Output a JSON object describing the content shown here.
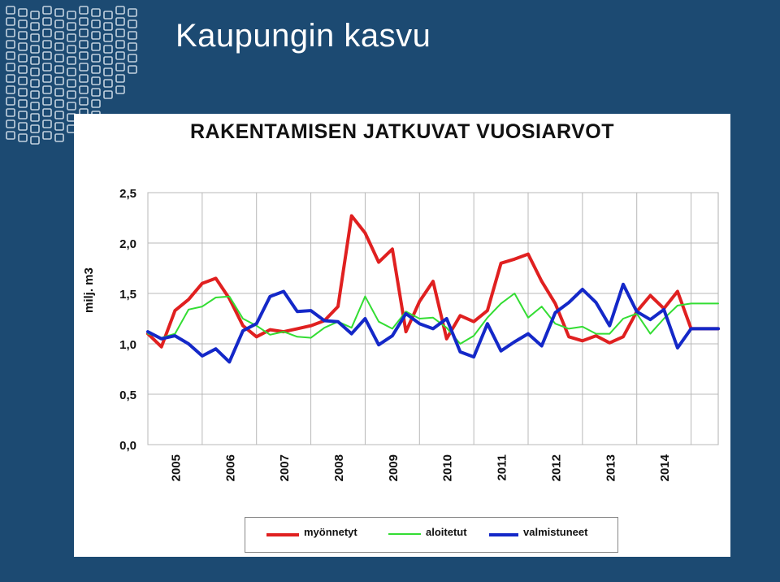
{
  "slide": {
    "title": "Kaupungin kasvu"
  },
  "colors": {
    "background": "#1c4a72",
    "myonnetyt": "#e02020",
    "aloitetut": "#33dd33",
    "valmistuneet": "#1428c8"
  },
  "chart_data": {
    "type": "line",
    "title": "RAKENTAMISEN JATKUVAT VUOSIARVOT",
    "ylabel": "milj. m3",
    "xlabel": "",
    "ylim": [
      0,
      2.5
    ],
    "yticks": [
      "0,0",
      "0,5",
      "1,0",
      "1,5",
      "2,0",
      "2,5"
    ],
    "xtick_labels": [
      "2005",
      "2006",
      "2007",
      "2008",
      "2009",
      "2010",
      "2011",
      "2012",
      "2013",
      "2014"
    ],
    "grid": true,
    "legend_position": "bottom",
    "x_range": [
      2004.0,
      2014.5
    ],
    "series": [
      {
        "name": "myönnetyt",
        "color": "#e02020",
        "x": [
          2004.0,
          2004.25,
          2004.5,
          2004.75,
          2005.0,
          2005.25,
          2005.5,
          2005.75,
          2006.0,
          2006.25,
          2006.5,
          2006.75,
          2007.0,
          2007.25,
          2007.5,
          2007.75,
          2008.0,
          2008.25,
          2008.5,
          2008.75,
          2009.0,
          2009.25,
          2009.5,
          2009.75,
          2010.0,
          2010.25,
          2010.5,
          2010.75,
          2011.0,
          2011.25,
          2011.5,
          2011.75,
          2012.0,
          2012.25,
          2012.5,
          2012.75,
          2013.0,
          2013.25,
          2013.5,
          2013.75,
          2014.0,
          2014.25,
          2014.5
        ],
        "y": [
          1.1,
          0.97,
          1.33,
          1.44,
          1.6,
          1.65,
          1.45,
          1.18,
          1.07,
          1.14,
          1.12,
          1.15,
          1.18,
          1.23,
          1.37,
          2.27,
          2.1,
          1.81,
          1.94,
          1.12,
          1.42,
          1.62,
          1.05,
          1.28,
          1.22,
          1.33,
          1.8,
          1.84,
          1.89,
          1.62,
          1.4,
          1.07,
          1.03,
          1.08,
          1.01,
          1.07,
          1.32,
          1.48,
          1.35,
          1.52,
          1.15,
          1.15,
          1.15
        ]
      },
      {
        "name": "aloitetut",
        "color": "#33dd33",
        "x": [
          2004.0,
          2004.25,
          2004.5,
          2004.75,
          2005.0,
          2005.25,
          2005.5,
          2005.75,
          2006.0,
          2006.25,
          2006.5,
          2006.75,
          2007.0,
          2007.25,
          2007.5,
          2007.75,
          2008.0,
          2008.25,
          2008.5,
          2008.75,
          2009.0,
          2009.25,
          2009.5,
          2009.75,
          2010.0,
          2010.25,
          2010.5,
          2010.75,
          2011.0,
          2011.25,
          2011.5,
          2011.75,
          2012.0,
          2012.25,
          2012.5,
          2012.75,
          2013.0,
          2013.25,
          2013.5,
          2013.75,
          2014.0,
          2014.25,
          2014.5
        ],
        "y": [
          1.1,
          1.06,
          1.1,
          1.34,
          1.37,
          1.46,
          1.47,
          1.25,
          1.18,
          1.09,
          1.12,
          1.07,
          1.06,
          1.16,
          1.22,
          1.16,
          1.47,
          1.22,
          1.15,
          1.32,
          1.25,
          1.26,
          1.16,
          1.0,
          1.08,
          1.26,
          1.4,
          1.5,
          1.26,
          1.37,
          1.2,
          1.15,
          1.17,
          1.1,
          1.1,
          1.25,
          1.3,
          1.1,
          1.25,
          1.38,
          1.4,
          1.4,
          1.4
        ]
      },
      {
        "name": "valmistuneet",
        "color": "#1428c8",
        "x": [
          2004.0,
          2004.25,
          2004.5,
          2004.75,
          2005.0,
          2005.25,
          2005.5,
          2005.75,
          2006.0,
          2006.25,
          2006.5,
          2006.75,
          2007.0,
          2007.25,
          2007.5,
          2007.75,
          2008.0,
          2008.25,
          2008.5,
          2008.75,
          2009.0,
          2009.25,
          2009.5,
          2009.75,
          2010.0,
          2010.25,
          2010.5,
          2010.75,
          2011.0,
          2011.25,
          2011.5,
          2011.75,
          2012.0,
          2012.25,
          2012.5,
          2012.75,
          2013.0,
          2013.25,
          2013.5,
          2013.75,
          2014.0,
          2014.25,
          2014.5
        ],
        "y": [
          1.12,
          1.05,
          1.08,
          1.0,
          0.88,
          0.95,
          0.82,
          1.13,
          1.2,
          1.47,
          1.52,
          1.32,
          1.33,
          1.23,
          1.22,
          1.1,
          1.25,
          0.99,
          1.08,
          1.3,
          1.2,
          1.15,
          1.25,
          0.92,
          0.87,
          1.2,
          0.93,
          1.02,
          1.1,
          0.98,
          1.31,
          1.41,
          1.54,
          1.41,
          1.18,
          1.59,
          1.32,
          1.24,
          1.34,
          0.96,
          1.15,
          1.15,
          1.15
        ]
      }
    ]
  }
}
